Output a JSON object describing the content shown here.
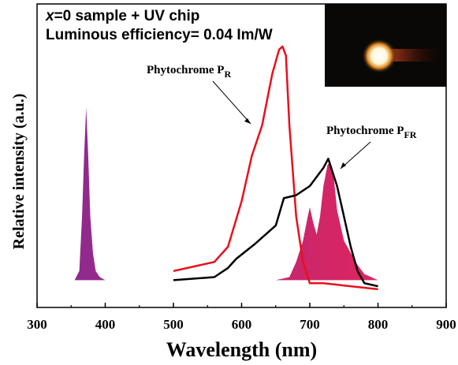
{
  "chart_data": {
    "type": "line",
    "title_lines": [
      {
        "italic": "x",
        "text": "=0 sample + UV chip"
      },
      {
        "text": "Luminous efficiency= 0.04 Im/W"
      }
    ],
    "xlabel": "Wavelength (nm)",
    "ylabel": "Relative intensity (a.u.)",
    "xlim": [
      300,
      900
    ],
    "xticks": [
      300,
      400,
      500,
      600,
      700,
      800,
      900
    ],
    "xminorticks": [
      350,
      450,
      550,
      650,
      750,
      850
    ],
    "ylim": [
      0,
      1
    ],
    "series": [
      {
        "fill": [
          "#8e2a8e",
          "#e8245a"
        ],
        "x": [
          355,
          362,
          366,
          369,
          372,
          375,
          378,
          382,
          386,
          392,
          400,
          500,
          600,
          650,
          670,
          680,
          690,
          697,
          700,
          705,
          710,
          715,
          720,
          726,
          730,
          735,
          740,
          750,
          760,
          770,
          780,
          800,
          845
        ],
        "values": [
          0.09,
          0.12,
          0.3,
          0.5,
          0.66,
          0.5,
          0.3,
          0.18,
          0.12,
          0.1,
          0.09,
          0.09,
          0.09,
          0.09,
          0.1,
          0.15,
          0.22,
          0.3,
          0.33,
          0.28,
          0.24,
          0.3,
          0.4,
          0.47,
          0.48,
          0.43,
          0.32,
          0.22,
          0.18,
          0.14,
          0.11,
          0.09,
          0.09
        ]
      },
      {
        "color": "#e8101c",
        "x": [
          500,
          560,
          580,
          600,
          615,
          630,
          645,
          655,
          660,
          665,
          670,
          680,
          690,
          700,
          720,
          760,
          800
        ],
        "values": [
          0.12,
          0.15,
          0.2,
          0.35,
          0.5,
          0.6,
          0.77,
          0.85,
          0.86,
          0.83,
          0.6,
          0.3,
          0.15,
          0.08,
          0.08,
          0.07,
          0.06
        ]
      },
      {
        "color": "#000000",
        "x": [
          500,
          560,
          580,
          592,
          620,
          650,
          662,
          680,
          700,
          720,
          727,
          740,
          750,
          760,
          770,
          780,
          800
        ],
        "values": [
          0.09,
          0.1,
          0.13,
          0.16,
          0.21,
          0.27,
          0.36,
          0.37,
          0.4,
          0.46,
          0.49,
          0.4,
          0.3,
          0.2,
          0.12,
          0.08,
          0.07
        ]
      }
    ],
    "annotations": [
      {
        "text": "Phytochrome P",
        "subscript": "R"
      },
      {
        "text": "Phytochrome P",
        "subscript": "FR"
      }
    ]
  }
}
